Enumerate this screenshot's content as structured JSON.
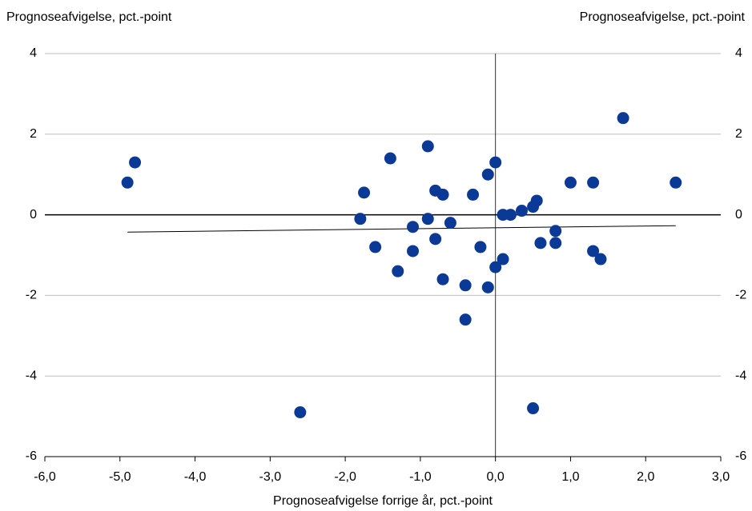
{
  "chart_data": {
    "type": "scatter",
    "y_label": "Prognoseafvigelse, pct.-point",
    "y2_label": "Prognoseafvigelse, pct.-point",
    "x_label": "Prognoseafvigelse forrige år, pct.-point",
    "x": [
      -4.9,
      -4.8,
      -2.6,
      -1.8,
      -1.75,
      -1.6,
      -1.4,
      -1.3,
      -1.1,
      -1.1,
      -0.9,
      -0.9,
      -0.8,
      -0.8,
      -0.7,
      -0.7,
      -0.6,
      -0.4,
      -0.4,
      -0.3,
      -0.2,
      -0.1,
      -0.1,
      0,
      0,
      0.1,
      0.1,
      0.2,
      0.35,
      0.5,
      0.55,
      0.5,
      0.6,
      0.8,
      0.8,
      1.0,
      1.3,
      1.3,
      1.4,
      1.7,
      2.4
    ],
    "values": [
      0.8,
      1.3,
      -4.9,
      -0.1,
      0.55,
      -0.8,
      1.4,
      -1.4,
      -0.3,
      -0.9,
      1.7,
      -0.1,
      0.6,
      -0.6,
      0.5,
      -1.6,
      -0.2,
      -1.75,
      -2.6,
      0.5,
      -0.8,
      1.0,
      -1.8,
      1.3,
      -1.3,
      0,
      -1.1,
      0,
      0.1,
      0.2,
      0.35,
      -4.8,
      -0.7,
      -0.4,
      -0.7,
      0.8,
      0.8,
      -0.9,
      -1.1,
      2.4,
      0.8
    ],
    "color": "#0b3a96",
    "trendline": {
      "x": [
        -4.9,
        2.4
      ],
      "y": [
        -0.43,
        -0.27
      ]
    },
    "xlim": [
      -6,
      3
    ],
    "xticks": [
      {
        "value": -6,
        "label": "-6,0"
      },
      {
        "value": -5,
        "label": "-5,0"
      },
      {
        "value": -4,
        "label": "-4,0"
      },
      {
        "value": -3,
        "label": "-3,0"
      },
      {
        "value": -2,
        "label": "-2,0"
      },
      {
        "value": -1,
        "label": "-1,0"
      },
      {
        "value": 0,
        "label": "0,0"
      },
      {
        "value": 1,
        "label": "1,0"
      },
      {
        "value": 2,
        "label": "2,0"
      },
      {
        "value": 3,
        "label": "3,0"
      }
    ],
    "ylim": [
      -6,
      4
    ],
    "yticks": [
      -6,
      -4,
      -2,
      0,
      2,
      4
    ],
    "y2lim": [
      -6,
      4
    ],
    "y2ticks": [
      -6,
      -4,
      -2,
      0,
      2,
      4
    ],
    "grid": true
  }
}
